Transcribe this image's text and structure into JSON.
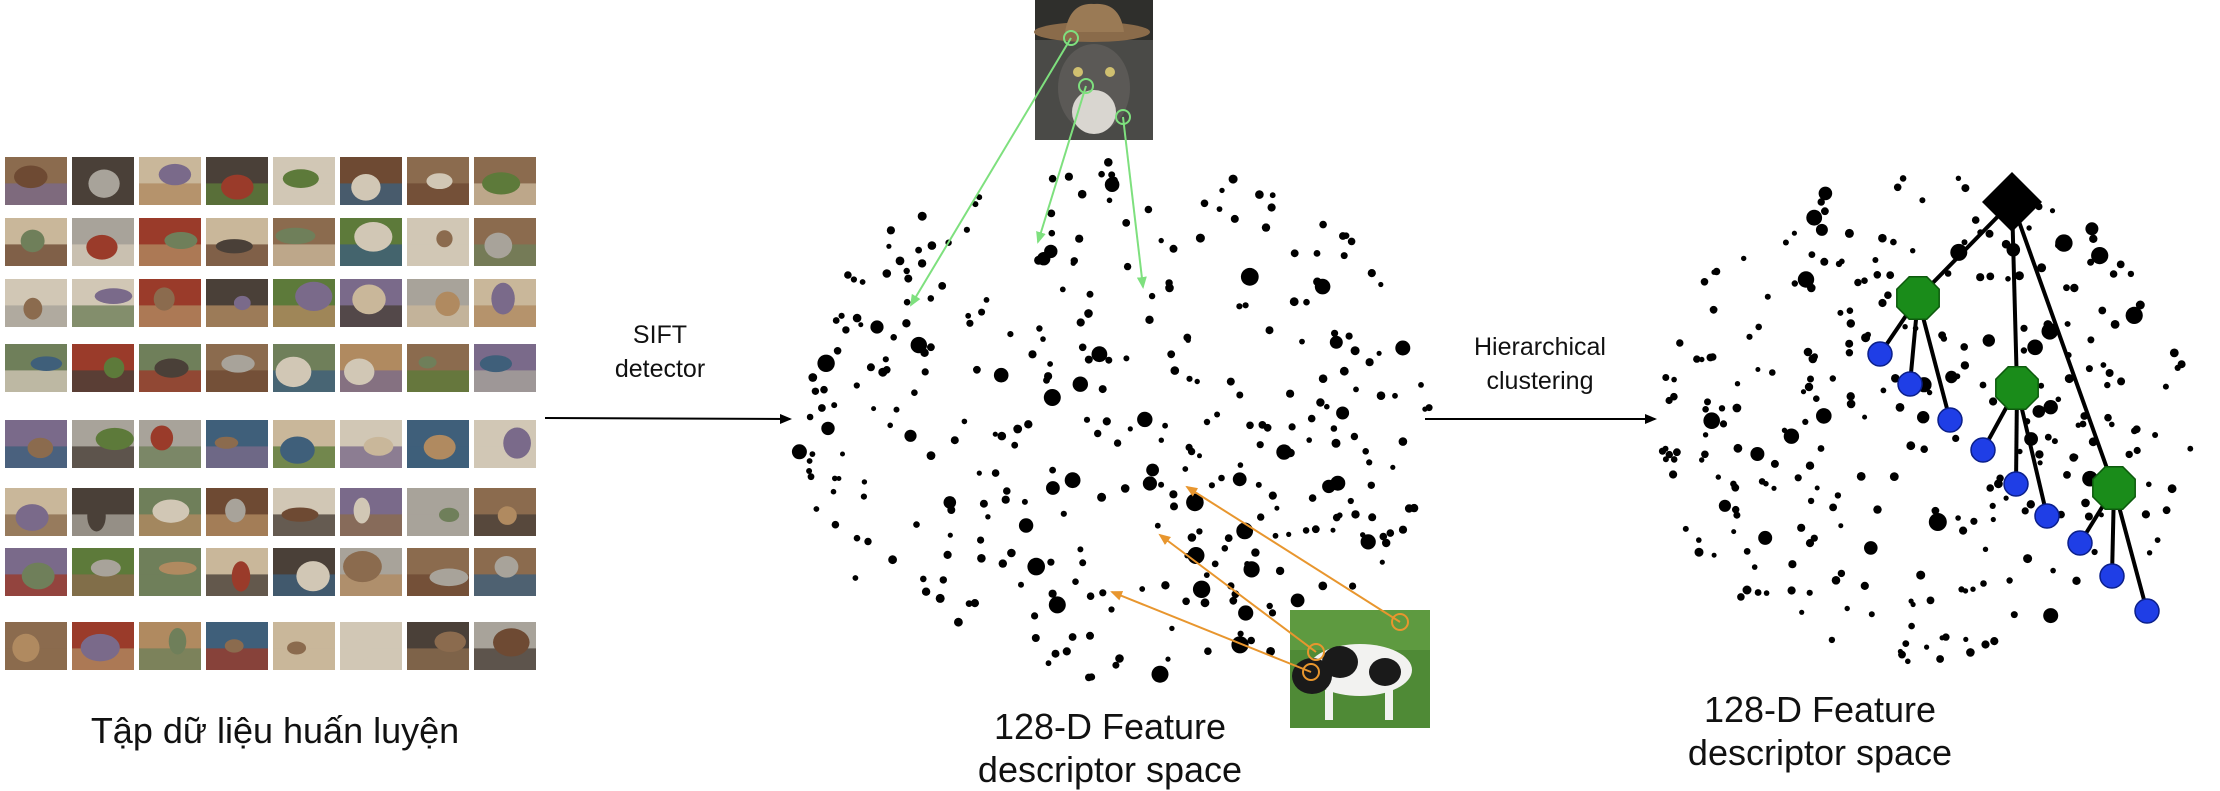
{
  "labels": {
    "training_set": "Tập dữ liệu huấn luyện",
    "sift_line1": "SIFT",
    "sift_line2": "detector",
    "hier_line1": "Hierarchical",
    "hier_line2": "clustering",
    "feature_space_mid_line1": "128-D Feature",
    "feature_space_mid_line2": "descriptor space",
    "feature_space_right_line1": "128-D Feature",
    "feature_space_right_line2": "descriptor space"
  },
  "colors": {
    "background": "#ffffff",
    "points": "#000000",
    "cat_arrows": "#7ee07e",
    "dog_arrows": "#e8962e",
    "root_node": "#000000",
    "cluster_nodes": "#1a8c1a",
    "leaf_nodes": "#1f3ee6"
  },
  "icons": {
    "cat_image": "cat-with-hat-photo",
    "dog_image": "dog-on-grass-photo",
    "root": "black-diamond",
    "cluster": "green-octagon",
    "leaf": "blue-circle"
  }
}
